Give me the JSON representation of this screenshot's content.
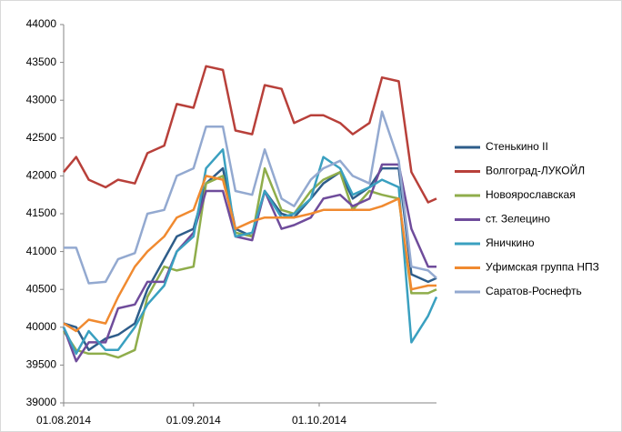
{
  "chart_data": {
    "type": "line",
    "x": [
      "2014-08-01",
      "2014-08-04",
      "2014-08-07",
      "2014-08-11",
      "2014-08-14",
      "2014-08-18",
      "2014-08-21",
      "2014-08-25",
      "2014-08-28",
      "2014-09-01",
      "2014-09-04",
      "2014-09-08",
      "2014-09-11",
      "2014-09-15",
      "2014-09-18",
      "2014-09-22",
      "2014-09-25",
      "2014-09-29",
      "2014-10-02",
      "2014-10-06",
      "2014-10-09",
      "2014-10-13",
      "2014-10-16",
      "2014-10-20",
      "2014-10-23",
      "2014-10-27",
      "2014-10-29"
    ],
    "xlim": [
      "2014-08-01",
      "2014-10-29"
    ],
    "xticks": [
      {
        "value": "2014-08-01",
        "label": "01.08.2014"
      },
      {
        "value": "2014-09-01",
        "label": "01.09.2014"
      },
      {
        "value": "2014-10-01",
        "label": "01.10.2014"
      }
    ],
    "ylim": [
      39000,
      44000
    ],
    "yticks": [
      39000,
      39500,
      40000,
      40500,
      41000,
      41500,
      42000,
      42500,
      43000,
      43500,
      44000
    ],
    "grid": false,
    "legend": "right",
    "series": [
      {
        "name": "Стенькино II",
        "color": "#2e5d8a",
        "values": [
          40050,
          40000,
          39700,
          39850,
          39900,
          40050,
          40500,
          40900,
          41200,
          41300,
          41900,
          42100,
          41300,
          41200,
          41800,
          41500,
          41450,
          41700,
          41900,
          42050,
          41700,
          41850,
          42100,
          42100,
          40700,
          40600,
          40650
        ]
      },
      {
        "name": "Волгоград-ЛУКОЙЛ",
        "color": "#b8403a",
        "values": [
          42050,
          42250,
          41950,
          41850,
          41950,
          41900,
          42300,
          42400,
          42950,
          42900,
          43450,
          43400,
          42600,
          42550,
          43200,
          43150,
          42700,
          42800,
          42800,
          42700,
          42550,
          42700,
          43300,
          43250,
          42050,
          41650,
          41700
        ]
      },
      {
        "name": "Новоярославская",
        "color": "#8fad4b",
        "values": [
          39950,
          39700,
          39650,
          39650,
          39600,
          39700,
          40400,
          40800,
          40750,
          40800,
          41900,
          42000,
          41250,
          41200,
          42100,
          41550,
          41500,
          41800,
          41950,
          42050,
          41550,
          41800,
          41750,
          41700,
          40450,
          40450,
          40500
        ]
      },
      {
        "name": "ст. Зелецино",
        "color": "#6f4c9b",
        "values": [
          40000,
          39550,
          39800,
          39800,
          40250,
          40300,
          40600,
          40600,
          41000,
          41250,
          41800,
          41800,
          41200,
          41150,
          41800,
          41300,
          41350,
          41450,
          41700,
          41750,
          41600,
          41700,
          42150,
          42150,
          41300,
          40800,
          40800
        ]
      },
      {
        "name": "Яничкино",
        "color": "#3aa0c0",
        "values": [
          40000,
          39650,
          39950,
          39700,
          39700,
          40000,
          40300,
          40550,
          41000,
          41200,
          42100,
          42350,
          41200,
          41250,
          41800,
          41450,
          41500,
          41700,
          42250,
          42100,
          41750,
          41850,
          41950,
          41850,
          39800,
          40150,
          40400
        ]
      },
      {
        "name": "Уфимская группа НПЗ",
        "color": "#f08a30",
        "values": [
          40050,
          39950,
          40100,
          40050,
          40400,
          40800,
          41000,
          41200,
          41450,
          41550,
          42000,
          41950,
          41300,
          41400,
          41450,
          41450,
          41450,
          41500,
          41550,
          41550,
          41550,
          41550,
          41600,
          41700,
          40500,
          40550,
          40550
        ]
      },
      {
        "name": "Саратов-Роснефть",
        "color": "#93a9d0",
        "values": [
          41050,
          41050,
          40580,
          40600,
          40900,
          40980,
          41500,
          41550,
          42000,
          42100,
          42650,
          42650,
          41800,
          41750,
          42350,
          41700,
          41600,
          41950,
          42100,
          42200,
          42000,
          41900,
          42850,
          42200,
          40800,
          40750,
          40650
        ]
      }
    ]
  }
}
